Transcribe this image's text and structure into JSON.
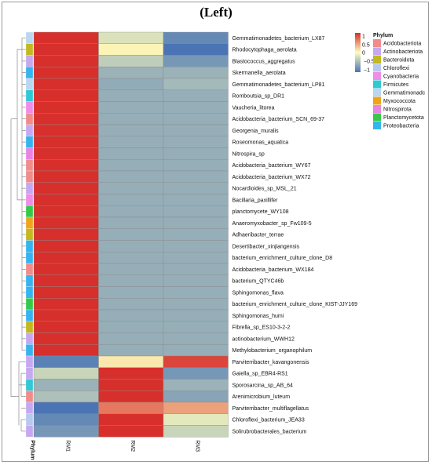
{
  "title": "(Left)",
  "chart_data": {
    "type": "heatmap",
    "columns": [
      "RM1",
      "RM2",
      "RM3"
    ],
    "annotation_label": "Phylum",
    "rows": [
      {
        "name": "Gemmatimonadetes_bacterium_LX87",
        "phylum": "Gemmatimonadota",
        "values": [
          1.15,
          -0.2,
          -0.85
        ]
      },
      {
        "name": "Rhodocytophaga_aerolata",
        "phylum": "Bacteroidota",
        "values": [
          1.0,
          0.05,
          -1.05
        ]
      },
      {
        "name": "Blastococcus_aggregatus",
        "phylum": "Actinobacteriota",
        "values": [
          1.15,
          -0.35,
          -0.75
        ]
      },
      {
        "name": "Skermanella_aerolata",
        "phylum": "Proteobacteria",
        "values": [
          1.15,
          -0.55,
          -0.55
        ]
      },
      {
        "name": "Gemmatimonadetes_bacterium_LP81",
        "phylum": "Gemmatimonadota",
        "values": [
          1.15,
          -0.6,
          -0.5
        ]
      },
      {
        "name": "Romboutsia_sp_DR1",
        "phylum": "Firmicutes",
        "values": [
          1.15,
          -0.58,
          -0.58
        ]
      },
      {
        "name": "Vaucheria_litorea",
        "phylum": "Cyanobacteria",
        "values": [
          1.15,
          -0.58,
          -0.58
        ]
      },
      {
        "name": "Acidobacteria_bacterium_SCN_69-37",
        "phylum": "Acidobacteriota",
        "values": [
          1.15,
          -0.58,
          -0.58
        ]
      },
      {
        "name": "Georgenia_muralis",
        "phylum": "Actinobacteriota",
        "values": [
          1.15,
          -0.58,
          -0.58
        ]
      },
      {
        "name": "Roseomonas_aquatica",
        "phylum": "Proteobacteria",
        "values": [
          1.15,
          -0.58,
          -0.58
        ]
      },
      {
        "name": "Nitrospira_sp",
        "phylum": "Nitrospirota",
        "values": [
          1.15,
          -0.58,
          -0.58
        ]
      },
      {
        "name": "Acidobacteria_bacterium_WY67",
        "phylum": "Acidobacteriota",
        "values": [
          1.15,
          -0.58,
          -0.58
        ]
      },
      {
        "name": "Acidobacteria_bacterium_WX72",
        "phylum": "Acidobacteriota",
        "values": [
          1.15,
          -0.58,
          -0.58
        ]
      },
      {
        "name": "Nocardioides_sp_MSL_21",
        "phylum": "Actinobacteriota",
        "values": [
          1.15,
          -0.58,
          -0.58
        ]
      },
      {
        "name": "Bacillaria_paxillifer",
        "phylum": "Cyanobacteria",
        "values": [
          1.15,
          -0.58,
          -0.58
        ]
      },
      {
        "name": "planctomycete_WY108",
        "phylum": "Planctomycetota",
        "values": [
          1.15,
          -0.58,
          -0.58
        ]
      },
      {
        "name": "Anaeromyxobacter_sp_Fw109-5",
        "phylum": "Myxococcota",
        "values": [
          1.15,
          -0.58,
          -0.58
        ]
      },
      {
        "name": "Adhaeribacter_terrae",
        "phylum": "Bacteroidota",
        "values": [
          1.15,
          -0.58,
          -0.58
        ]
      },
      {
        "name": "Desertibacter_xinjiangensis",
        "phylum": "Proteobacteria",
        "values": [
          1.15,
          -0.58,
          -0.58
        ]
      },
      {
        "name": "bacterium_enrichment_culture_clone_D8",
        "phylum": "Proteobacteria",
        "values": [
          1.15,
          -0.58,
          -0.58
        ]
      },
      {
        "name": "Acidobacteria_bacterium_WX184",
        "phylum": "Acidobacteriota",
        "values": [
          1.15,
          -0.58,
          -0.58
        ]
      },
      {
        "name": "bacterium_QTYC46b",
        "phylum": "Proteobacteria",
        "values": [
          1.15,
          -0.58,
          -0.58
        ]
      },
      {
        "name": "Sphingomonas_flava",
        "phylum": "Proteobacteria",
        "values": [
          1.15,
          -0.58,
          -0.58
        ]
      },
      {
        "name": "bacterium_enrichment_culture_clone_KIST-JJY169",
        "phylum": "Planctomycetota",
        "values": [
          1.15,
          -0.58,
          -0.58
        ]
      },
      {
        "name": "Sphingomonas_humi",
        "phylum": "Proteobacteria",
        "values": [
          1.15,
          -0.58,
          -0.58
        ]
      },
      {
        "name": "Fibrella_sp_ES10-3-2-2",
        "phylum": "Bacteroidota",
        "values": [
          1.15,
          -0.58,
          -0.58
        ]
      },
      {
        "name": "actinobacterium_WWH12",
        "phylum": "Actinobacteriota",
        "values": [
          1.15,
          -0.58,
          -0.58
        ]
      },
      {
        "name": "Methylobacterium_organophilum",
        "phylum": "Proteobacteria",
        "values": [
          1.15,
          -0.58,
          -0.58
        ]
      },
      {
        "name": "Parviterribacter_kavangonensis",
        "phylum": "Actinobacteriota",
        "values": [
          -0.9,
          0.1,
          0.9
        ]
      },
      {
        "name": "Gaiella_sp_EBR4-RS1",
        "phylum": "Actinobacteriota",
        "values": [
          -0.3,
          1.15,
          -0.75
        ]
      },
      {
        "name": "Sporosarcina_sp_AB_64",
        "phylum": "Firmicutes",
        "values": [
          -0.55,
          1.15,
          -0.55
        ]
      },
      {
        "name": "Arenimicrobium_luteum",
        "phylum": "Acidobacteriota",
        "values": [
          -0.45,
          1.15,
          -0.65
        ]
      },
      {
        "name": "Parviterribacter_multiflagellatus",
        "phylum": "Actinobacteriota",
        "values": [
          -1.1,
          0.65,
          0.45
        ]
      },
      {
        "name": "Chloroflexi_bacterium_JEA33",
        "phylum": "Chloroflexi",
        "values": [
          -0.85,
          1.0,
          -0.15
        ]
      },
      {
        "name": "Solirubrobacterales_bacterium",
        "phylum": "Actinobacteriota",
        "values": [
          -0.75,
          1.05,
          -0.3
        ]
      }
    ],
    "color_scale": {
      "low_color": "#4a74b4",
      "mid_color": "#fefebd",
      "high_color": "#d7302c",
      "ticks": [
        {
          "value": 1,
          "label": "1"
        },
        {
          "value": 0.5,
          "label": "0.5"
        },
        {
          "value": 0,
          "label": "0"
        },
        {
          "value": -0.5,
          "label": "−0.5"
        },
        {
          "value": -1,
          "label": "−1"
        }
      ]
    },
    "legend": {
      "title": "Phylum",
      "items": [
        {
          "label": "Acidobacteriota",
          "color": "#f08c8c"
        },
        {
          "label": "Actinobacteriota",
          "color": "#c5a9f0"
        },
        {
          "label": "Bacteroidota",
          "color": "#c3b81f"
        },
        {
          "label": "Chloroflexi",
          "color": "#b7c9ec"
        },
        {
          "label": "Cyanobacteria",
          "color": "#ee8ee8"
        },
        {
          "label": "Firmicutes",
          "color": "#2fc9d6"
        },
        {
          "label": "Gemmatimonadota",
          "color": "#b9d7ee"
        },
        {
          "label": "Myxococcota",
          "color": "#f0a41c"
        },
        {
          "label": "Nitrospirota",
          "color": "#e884e3"
        },
        {
          "label": "Planctomycetota",
          "color": "#35c94a"
        },
        {
          "label": "Proteobacteria",
          "color": "#35b4ef"
        }
      ]
    },
    "legend_display_labels": [
      "Acidobacteriota",
      "Actinobacteriota",
      "Bacteroidota",
      "Chloroflexi",
      "Cyanobacteria",
      "Firmicutes",
      "Gemmatimonadc",
      "Myxococcota",
      "Nitrospirota",
      "Planctomycetota",
      "Proteobacteria"
    ]
  }
}
